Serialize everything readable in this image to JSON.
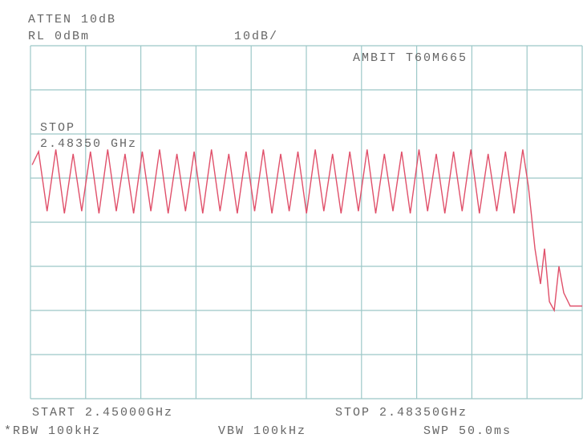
{
  "chart_data": {
    "type": "line",
    "annotations": [
      "ATTEN 10dB",
      "RL 0dBm",
      "10dB/",
      "AMBIT T60M665",
      "STOP",
      "2.48350 GHz",
      "START 2.45000GHz",
      "STOP 2.48350GHz",
      "*RBW 100kHz",
      "VBW 100kHz",
      "SWP 50.0ms"
    ],
    "x": [
      2.4501,
      2.45049,
      2.45101,
      2.45154,
      2.45206,
      2.45259,
      2.45311,
      2.45364,
      2.45416,
      2.45469,
      2.45521,
      2.45574,
      2.45626,
      2.45679,
      2.45731,
      2.45784,
      2.45836,
      2.45889,
      2.45941,
      2.45994,
      2.46046,
      2.46099,
      2.46151,
      2.46204,
      2.46256,
      2.46309,
      2.46361,
      2.46414,
      2.46466,
      2.46519,
      2.46571,
      2.46624,
      2.46676,
      2.46729,
      2.46781,
      2.46834,
      2.46886,
      2.46939,
      2.46991,
      2.47044,
      2.47096,
      2.47149,
      2.47201,
      2.47254,
      2.47306,
      2.47359,
      2.47411,
      2.47464,
      2.47516,
      2.47569,
      2.47621,
      2.47674,
      2.47726,
      2.47779,
      2.47831,
      2.47884,
      2.47936,
      2.47989,
      2.48024,
      2.48063,
      2.48097,
      2.48121,
      2.48151,
      2.4818,
      2.48209,
      2.48238,
      2.48277,
      2.4835
    ],
    "values": [
      -27,
      -24,
      -37.5,
      -23.5,
      -38,
      -24.5,
      -37.5,
      -24,
      -38,
      -23.5,
      -37.5,
      -24.5,
      -38,
      -24,
      -37.5,
      -23.5,
      -38,
      -24.5,
      -37.5,
      -24,
      -38,
      -23.5,
      -37.5,
      -24.5,
      -38,
      -24,
      -37.5,
      -23.5,
      -38,
      -24.5,
      -37.5,
      -24,
      -38,
      -23.5,
      -37.5,
      -24.5,
      -38,
      -24,
      -37.5,
      -23.5,
      -38,
      -24.5,
      -37.5,
      -24,
      -38,
      -23.5,
      -37.5,
      -24.5,
      -38,
      -24,
      -37.5,
      -23.5,
      -38,
      -24.5,
      -37.5,
      -24,
      -38,
      -23.5,
      -32,
      -46,
      -54,
      -46,
      -58,
      -60,
      -50,
      -56,
      -59,
      -59
    ],
    "color": "#e0506a",
    "xlim": [
      2.45,
      2.4835
    ],
    "xticks": [
      2.45,
      2.45335,
      2.4567,
      2.46005,
      2.4634,
      2.46675,
      2.4701,
      2.47345,
      2.4768,
      2.48015,
      2.4835
    ],
    "ylim": [
      -80,
      0
    ],
    "yticks": [
      -80,
      -70,
      -60,
      -50,
      -40,
      -30,
      -20,
      -10,
      0
    ],
    "grid": true
  }
}
